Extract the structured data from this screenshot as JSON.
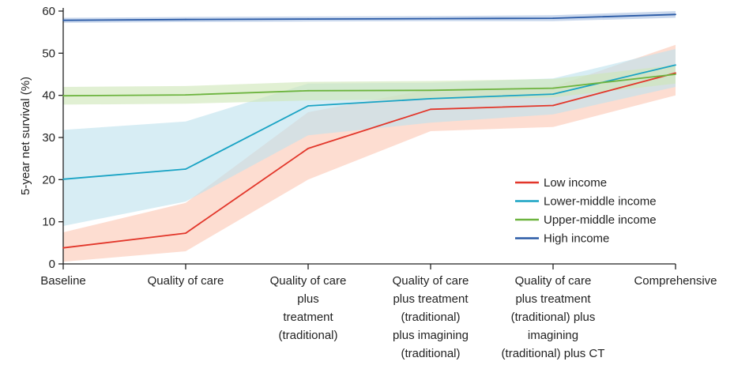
{
  "chart_data": {
    "type": "line",
    "ylabel": "5-year net survival (%)",
    "xlabel": "",
    "ylim": [
      0,
      60
    ],
    "yticks": [
      "0",
      "10",
      "20",
      "30",
      "40",
      "50",
      "60"
    ],
    "categories": [
      [
        "Baseline"
      ],
      [
        "Quality of care"
      ],
      [
        "Quality of care",
        "plus",
        "treatment",
        "(traditional)"
      ],
      [
        "Quality of care",
        "plus treatment",
        "(traditional)",
        "plus  imagining",
        "(traditional)"
      ],
      [
        "Quality of care",
        "plus treatment",
        "(traditional) plus",
        "imagining",
        "(traditional) plus CT"
      ],
      [
        "Comprehensive"
      ]
    ],
    "legend_position": "lower-right",
    "grid": false,
    "series": [
      {
        "name": "Low income",
        "color": "#e2362a",
        "band_color": "#fbc8b4",
        "values": [
          3.8,
          7.3,
          27.4,
          36.7,
          37.6,
          45.3
        ],
        "lower": [
          0.5,
          3.0,
          20.0,
          31.5,
          32.5,
          40.0
        ],
        "upper": [
          7.5,
          14.5,
          36.0,
          41.5,
          42.0,
          52.0
        ]
      },
      {
        "name": "Lower-middle income",
        "color": "#19a3c4",
        "band_color": "#bfe2ee",
        "values": [
          20.1,
          22.5,
          37.5,
          39.2,
          40.3,
          47.2
        ],
        "lower": [
          9.0,
          14.8,
          30.5,
          33.5,
          35.5,
          42.0
        ],
        "upper": [
          31.8,
          33.8,
          42.8,
          43.0,
          44.0,
          51.0
        ]
      },
      {
        "name": "Upper-middle income",
        "color": "#6db43f",
        "band_color": "#cfe6b8",
        "values": [
          39.9,
          40.1,
          41.1,
          41.2,
          41.7,
          45.0
        ],
        "lower": [
          37.8,
          38.0,
          38.8,
          39.0,
          39.5,
          42.8
        ],
        "upper": [
          42.0,
          42.2,
          43.2,
          43.4,
          43.9,
          47.2
        ]
      },
      {
        "name": "High income",
        "color": "#2a5aa6",
        "band_color": "#a9c0e2",
        "values": [
          57.8,
          58.0,
          58.1,
          58.2,
          58.3,
          59.2
        ],
        "lower": [
          57.2,
          57.4,
          57.5,
          57.6,
          57.6,
          58.4
        ],
        "upper": [
          58.4,
          58.6,
          58.7,
          58.8,
          59.0,
          60.0
        ]
      }
    ]
  }
}
